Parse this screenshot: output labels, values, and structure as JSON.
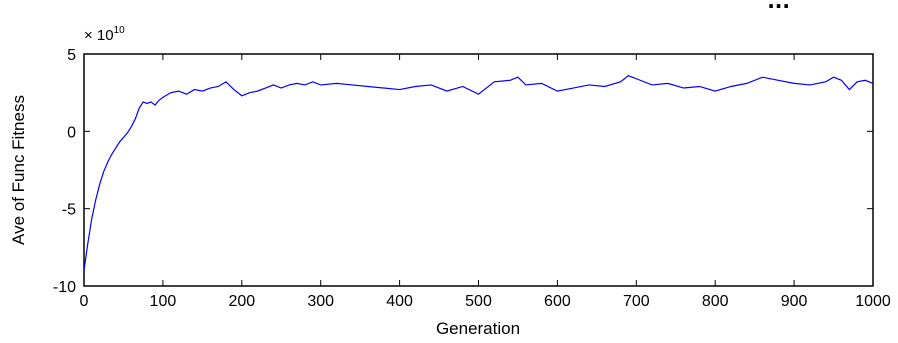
{
  "page": {
    "header_banner": "...",
    "accent_color": "#0000ff"
  },
  "chart_data": {
    "type": "line",
    "title": "",
    "xlabel": "Generation",
    "ylabel": "Ave of Func Fitness",
    "y_exponent_label": {
      "base": "× 10",
      "power": "10"
    },
    "xlim": [
      0,
      1000
    ],
    "ylim": [
      -10,
      5
    ],
    "y_scale_factor": 10000000000.0,
    "grid": false,
    "xticks": [
      0,
      100,
      200,
      300,
      400,
      500,
      600,
      700,
      800,
      900,
      1000
    ],
    "yticks": [
      -10,
      -5,
      0,
      5
    ],
    "series": [
      {
        "color": "#0000ff",
        "x": [
          0,
          5,
          10,
          15,
          20,
          25,
          30,
          35,
          40,
          45,
          50,
          55,
          60,
          65,
          70,
          75,
          80,
          85,
          90,
          95,
          100,
          110,
          120,
          130,
          140,
          150,
          160,
          170,
          180,
          190,
          200,
          210,
          220,
          230,
          240,
          250,
          260,
          270,
          280,
          290,
          300,
          320,
          340,
          360,
          380,
          400,
          420,
          440,
          460,
          480,
          500,
          520,
          540,
          550,
          560,
          580,
          600,
          620,
          640,
          660,
          680,
          690,
          700,
          720,
          740,
          760,
          780,
          800,
          820,
          840,
          860,
          880,
          900,
          920,
          940,
          950,
          960,
          970,
          980,
          990,
          1000
        ],
        "y": [
          -9.0,
          -7.2,
          -5.6,
          -4.4,
          -3.4,
          -2.6,
          -2.0,
          -1.5,
          -1.1,
          -0.7,
          -0.4,
          -0.1,
          0.3,
          0.8,
          1.5,
          1.9,
          1.8,
          1.9,
          1.7,
          2.0,
          2.2,
          2.5,
          2.6,
          2.4,
          2.7,
          2.6,
          2.8,
          2.9,
          3.2,
          2.7,
          2.3,
          2.5,
          2.6,
          2.8,
          3.0,
          2.8,
          3.0,
          3.1,
          3.0,
          3.2,
          3.0,
          3.1,
          3.0,
          2.9,
          2.8,
          2.7,
          2.9,
          3.0,
          2.6,
          2.9,
          2.4,
          3.2,
          3.3,
          3.5,
          3.0,
          3.1,
          2.6,
          2.8,
          3.0,
          2.9,
          3.2,
          3.6,
          3.4,
          3.0,
          3.1,
          2.8,
          2.9,
          2.6,
          2.9,
          3.1,
          3.5,
          3.3,
          3.1,
          3.0,
          3.2,
          3.5,
          3.3,
          2.7,
          3.2,
          3.3,
          3.1
        ]
      }
    ]
  }
}
